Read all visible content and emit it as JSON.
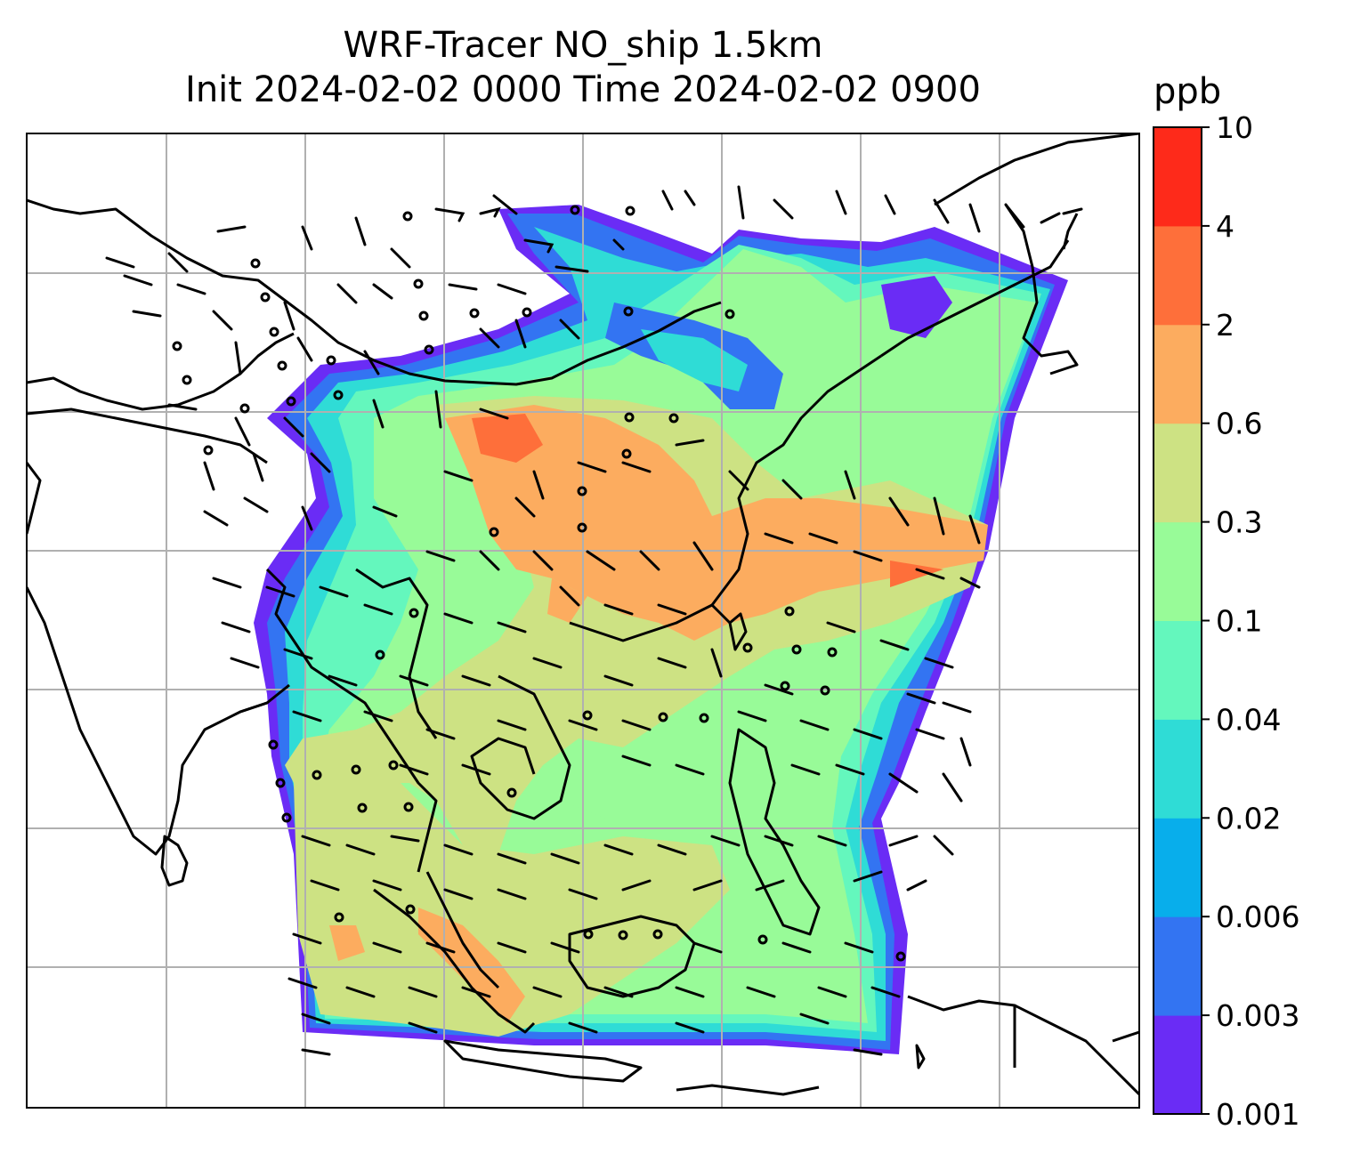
{
  "title": {
    "line1": "WRF-Tracer NO_ship 1.5km",
    "line2": "Init 2024-02-02 0000 Time 2024-02-02 0900"
  },
  "colorbar": {
    "unit": "ppb",
    "levels": [
      "0.001",
      "0.003",
      "0.006",
      "0.02",
      "0.04",
      "0.1",
      "0.3",
      "0.6",
      "2",
      "4",
      "10"
    ],
    "colors": [
      "#6a2cf5",
      "#3374f2",
      "#08aeeb",
      "#2fdcd6",
      "#64f7bd",
      "#98fb98",
      "#cde283",
      "#fcac5f",
      "#fe6f3a",
      "#fe2a1a"
    ]
  },
  "map": {
    "grid_color": "#b0b0b0",
    "coastline_color": "#000000",
    "wind_barb_color": "#000000"
  }
}
